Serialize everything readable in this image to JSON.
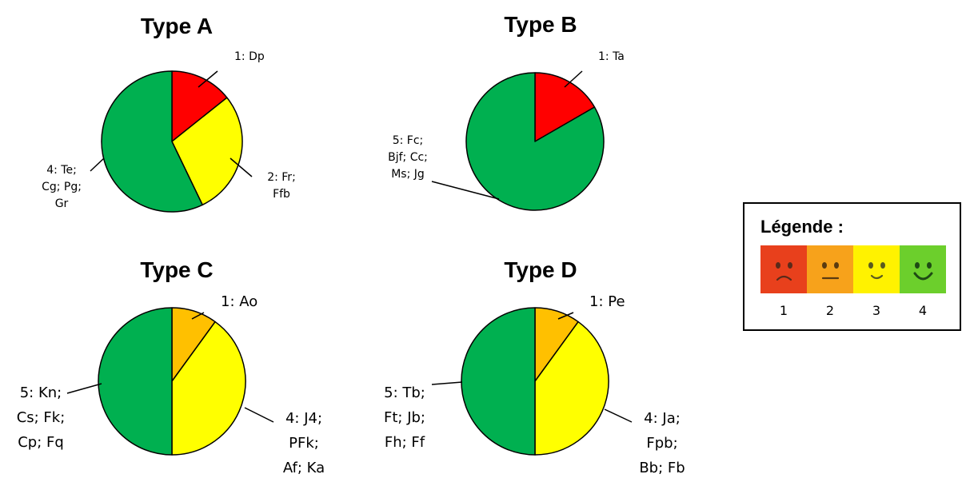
{
  "chart_data": [
    {
      "type": "pie",
      "title": "Type A",
      "slices": [
        {
          "rating": 1,
          "count": 1,
          "label": "1: Dp",
          "color": "#ff0000"
        },
        {
          "rating": 2,
          "count": 2,
          "label": "2: Fr; Ffb",
          "color": "#ffff00"
        },
        {
          "rating": 4,
          "count": 4,
          "label": "4: Te; Cg; Pg; Gr",
          "color": "#00b050"
        }
      ]
    },
    {
      "type": "pie",
      "title": "Type B",
      "slices": [
        {
          "rating": 1,
          "count": 1,
          "label": "1: Ta",
          "color": "#ff0000"
        },
        {
          "rating": 5,
          "count": 5,
          "label": "5: Fc; Bjf; Cc; Ms; Jg",
          "color": "#00b050"
        }
      ]
    },
    {
      "type": "pie",
      "title": "Type C",
      "slices": [
        {
          "rating": 1,
          "count": 1,
          "label": "1: Ao",
          "color": "#ffc000"
        },
        {
          "rating": 4,
          "count": 4,
          "label": "4: J4; PFk; Af; Ka",
          "color": "#ffff00"
        },
        {
          "rating": 5,
          "count": 5,
          "label": "5: Kn; Cs; Fk; Cp; Fq",
          "color": "#00b050"
        }
      ]
    },
    {
      "type": "pie",
      "title": "Type D",
      "slices": [
        {
          "rating": 1,
          "count": 1,
          "label": "1: Pe",
          "color": "#ffc000"
        },
        {
          "rating": 4,
          "count": 4,
          "label": "4: Ja; Fpb; Bb; Fb",
          "color": "#ffff00"
        },
        {
          "rating": 5,
          "count": 5,
          "label": "5: Tb; Ft; Jb; Fh; Ff",
          "color": "#00b050"
        }
      ]
    }
  ],
  "legend": {
    "title": "Légende :",
    "items": [
      {
        "number": "1",
        "color": "#e8401c",
        "icon": "sad-face-icon"
      },
      {
        "number": "2",
        "color": "#f7a21b",
        "icon": "neutral-face-icon"
      },
      {
        "number": "3",
        "color": "#fff200",
        "icon": "slight-smile-face-icon"
      },
      {
        "number": "4",
        "color": "#6ccf2c",
        "icon": "happy-face-icon"
      }
    ]
  }
}
